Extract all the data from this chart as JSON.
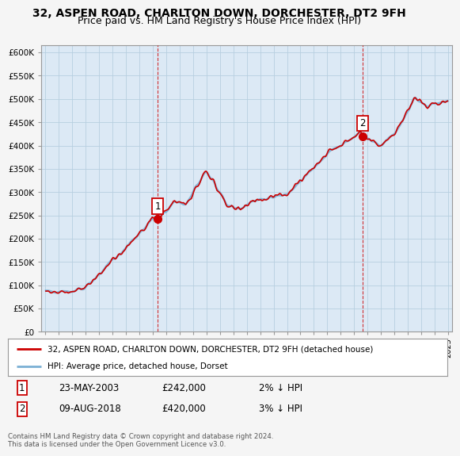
{
  "title": "32, ASPEN ROAD, CHARLTON DOWN, DORCHESTER, DT2 9FH",
  "subtitle": "Price paid vs. HM Land Registry's House Price Index (HPI)",
  "title_fontsize": 10,
  "subtitle_fontsize": 9,
  "ylabel_ticks": [
    "£0",
    "£50K",
    "£100K",
    "£150K",
    "£200K",
    "£250K",
    "£300K",
    "£350K",
    "£400K",
    "£450K",
    "£500K",
    "£550K",
    "£600K"
  ],
  "ytick_vals": [
    0,
    50000,
    100000,
    150000,
    200000,
    250000,
    300000,
    350000,
    400000,
    450000,
    500000,
    550000,
    600000
  ],
  "ylim": [
    0,
    615000
  ],
  "xlim_start": 1994.7,
  "xlim_end": 2025.3,
  "hpi_color": "#7ab0d4",
  "price_color": "#cc0000",
  "plot_bg_color": "#dce9f5",
  "background_color": "#f5f5f5",
  "marker1_date_x": 2003.38,
  "marker1_value": 242000,
  "marker2_date_x": 2018.61,
  "marker2_value": 420000,
  "vline_color": "#cc0000",
  "legend_line1": "32, ASPEN ROAD, CHARLTON DOWN, DORCHESTER, DT2 9FH (detached house)",
  "legend_line2": "HPI: Average price, detached house, Dorset",
  "table_rows": [
    [
      "1",
      "23-MAY-2003",
      "£242,000",
      "2% ↓ HPI"
    ],
    [
      "2",
      "09-AUG-2018",
      "£420,000",
      "3% ↓ HPI"
    ]
  ],
  "footnote": "Contains HM Land Registry data © Crown copyright and database right 2024.\nThis data is licensed under the Open Government Licence v3.0."
}
